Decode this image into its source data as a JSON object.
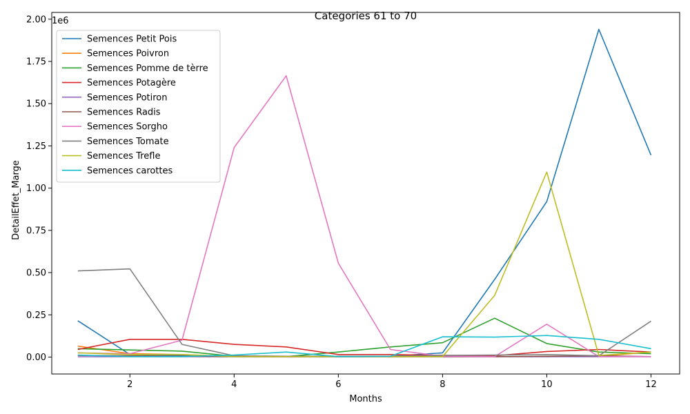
{
  "chart_data": {
    "type": "line",
    "title": "Categories 61 to 70",
    "xlabel": "Months",
    "ylabel": "DetailEffet_Marge",
    "y_offset_label": "1e6",
    "x": [
      1,
      2,
      3,
      4,
      5,
      6,
      7,
      8,
      9,
      10,
      11,
      12
    ],
    "xlim": [
      0.5,
      12.55
    ],
    "ylim": [
      -0.1,
      2.04
    ],
    "y_scale_note": "values in units of 1e6",
    "x_ticks": [
      "2",
      "4",
      "6",
      "8",
      "10",
      "12"
    ],
    "y_ticks": [
      "0.00",
      "0.25",
      "0.50",
      "0.75",
      "1.00",
      "1.25",
      "1.50",
      "1.75",
      "2.00"
    ],
    "grid": false,
    "legend_position": "upper-left",
    "series": [
      {
        "name": "Semences Petit Pois",
        "color": "#1f77b4",
        "values": [
          0.215,
          0.015,
          0.01,
          0.005,
          0.003,
          0.003,
          0.005,
          0.025,
          0.46,
          0.92,
          1.94,
          1.195
        ]
      },
      {
        "name": "Semences Poivron",
        "color": "#ff7f0e",
        "values": [
          0.065,
          0.02,
          0.015,
          0.003,
          0.002,
          0.002,
          0.002,
          0.003,
          0.003,
          0.003,
          0.005,
          0.03
        ]
      },
      {
        "name": "Semences Pomme de tèrre",
        "color": "#2ca02c",
        "values": [
          0.05,
          0.042,
          0.035,
          0.005,
          0.003,
          0.03,
          0.06,
          0.085,
          0.23,
          0.08,
          0.03,
          0.02
        ]
      },
      {
        "name": "Semences Potagère",
        "color": "#d62728",
        "values": [
          0.045,
          0.105,
          0.105,
          0.075,
          0.06,
          0.015,
          0.015,
          0.01,
          0.008,
          0.033,
          0.045,
          0.03
        ]
      },
      {
        "name": "Semences Potiron",
        "color": "#9467bd",
        "values": [
          0.002,
          0.002,
          0.002,
          0.002,
          0.002,
          0.002,
          0.002,
          0.002,
          0.002,
          0.002,
          0.002,
          0.002
        ]
      },
      {
        "name": "Semences Radis",
        "color": "#8c564b",
        "values": [
          0.01,
          0.008,
          0.005,
          0.003,
          0.003,
          0.003,
          0.003,
          0.003,
          0.003,
          0.005,
          0.008,
          0.003
        ]
      },
      {
        "name": "Semences Sorgho",
        "color": "#e377c2",
        "values": [
          0.025,
          0.02,
          0.1,
          1.24,
          1.665,
          0.555,
          0.045,
          0.005,
          0.003,
          0.195,
          0.003,
          0.003
        ]
      },
      {
        "name": "Semences Tomate",
        "color": "#7f7f7f",
        "values": [
          0.51,
          0.522,
          0.075,
          0.008,
          0.005,
          0.005,
          0.005,
          0.01,
          0.012,
          0.015,
          0.008,
          0.213
        ]
      },
      {
        "name": "Semences Trefle",
        "color": "#bcbd22",
        "values": [
          0.025,
          0.015,
          0.015,
          0.003,
          0.003,
          0.003,
          0.003,
          0.003,
          0.365,
          1.095,
          0.01,
          0.03
        ]
      },
      {
        "name": "Semences carottes",
        "color": "#17becf",
        "values": [
          0.012,
          0.003,
          0.003,
          0.012,
          0.03,
          0.003,
          0.005,
          0.12,
          0.118,
          0.128,
          0.105,
          0.05
        ]
      }
    ]
  }
}
